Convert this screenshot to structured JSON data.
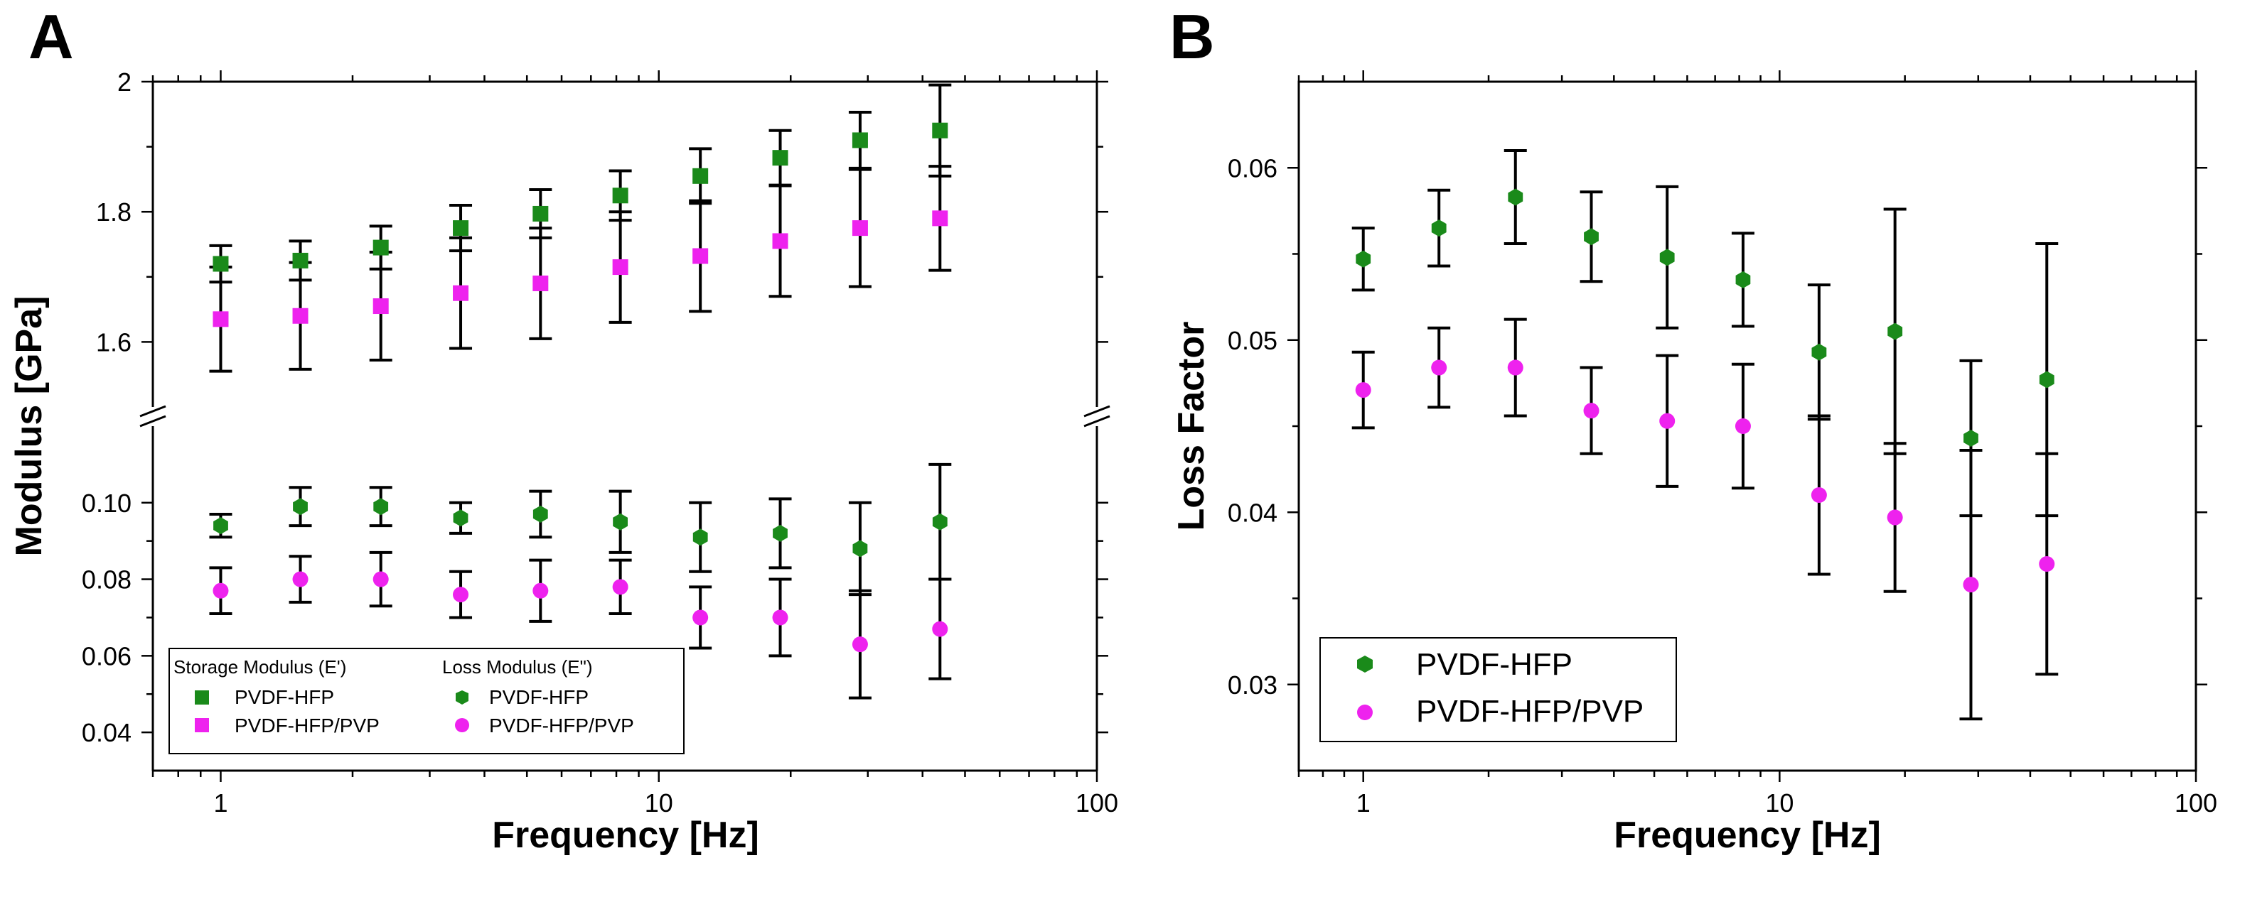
{
  "chart_data": [
    {
      "panel": "A",
      "type": "scatter",
      "xscale": "log",
      "xlabel": "Frequency [Hz]",
      "ylabel": "Modulus [GPa]",
      "xlim": [
        0.7,
        100
      ],
      "x_ticks": [
        1,
        10,
        100
      ],
      "x_tick_labels": [
        "1",
        "10",
        "100"
      ],
      "upper_ylim": [
        1.5,
        2.0
      ],
      "upper_y_ticks": [
        1.6,
        1.8,
        2.0
      ],
      "upper_y_tick_labels": [
        "1.6",
        "1.8",
        "2"
      ],
      "lower_ylim": [
        0.03,
        0.12
      ],
      "lower_y_ticks": [
        0.04,
        0.06,
        0.08,
        0.1
      ],
      "lower_y_tick_labels": [
        "0.04",
        "0.06",
        "0.08",
        "0.10"
      ],
      "x": [
        1.0,
        1.52,
        2.32,
        3.53,
        5.37,
        8.17,
        12.44,
        18.93,
        28.81,
        43.84
      ],
      "series": [
        {
          "name": "PVDF-HFP",
          "group": "Storage Modulus (E')",
          "segment": "upper",
          "marker": "square",
          "color": "#1a8a1a",
          "values": [
            1.72,
            1.725,
            1.745,
            1.775,
            1.797,
            1.825,
            1.855,
            1.883,
            1.91,
            1.925
          ],
          "errors": [
            0.028,
            0.03,
            0.033,
            0.035,
            0.037,
            0.038,
            0.042,
            0.042,
            0.043,
            0.07
          ]
        },
        {
          "name": "PVDF-HFP/PVP",
          "group": "Storage Modulus (E')",
          "segment": "upper",
          "marker": "square",
          "color": "#ee22ee",
          "values": [
            1.635,
            1.64,
            1.655,
            1.675,
            1.69,
            1.715,
            1.732,
            1.755,
            1.775,
            1.79
          ],
          "errors": [
            0.08,
            0.082,
            0.083,
            0.085,
            0.085,
            0.085,
            0.085,
            0.085,
            0.09,
            0.08
          ]
        },
        {
          "name": "PVDF-HFP",
          "group": "Loss Modulus (E\")",
          "segment": "lower",
          "marker": "hexagon",
          "color": "#1a8a1a",
          "values": [
            0.094,
            0.099,
            0.099,
            0.096,
            0.097,
            0.095,
            0.091,
            0.092,
            0.088,
            0.095
          ],
          "errors": [
            0.003,
            0.005,
            0.005,
            0.004,
            0.006,
            0.008,
            0.009,
            0.009,
            0.012,
            0.015
          ]
        },
        {
          "name": "PVDF-HFP/PVP",
          "group": "Loss Modulus (E\")",
          "segment": "lower",
          "marker": "circle",
          "color": "#ee22ee",
          "values": [
            0.077,
            0.08,
            0.08,
            0.076,
            0.077,
            0.078,
            0.07,
            0.07,
            0.063,
            0.067
          ],
          "errors": [
            0.006,
            0.006,
            0.007,
            0.006,
            0.008,
            0.007,
            0.008,
            0.01,
            0.014,
            0.013
          ]
        }
      ],
      "legend": {
        "placement": "bottom-left",
        "columns": [
          {
            "header": "Storage Modulus (E')",
            "entries": [
              "PVDF-HFP",
              "PVDF-HFP/PVP"
            ]
          },
          {
            "header": "Loss Modulus (E\")",
            "entries": [
              "PVDF-HFP",
              "PVDF-HFP/PVP"
            ]
          }
        ]
      }
    },
    {
      "panel": "B",
      "type": "scatter",
      "xscale": "log",
      "xlabel": "Frequency [Hz]",
      "ylabel": "Loss Factor",
      "xlim": [
        0.7,
        100
      ],
      "x_ticks": [
        1,
        10,
        100
      ],
      "x_tick_labels": [
        "1",
        "10",
        "100"
      ],
      "ylim": [
        0.025,
        0.065
      ],
      "y_ticks": [
        0.03,
        0.04,
        0.05,
        0.06
      ],
      "y_tick_labels": [
        "0.03",
        "0.04",
        "0.05",
        "0.06"
      ],
      "x": [
        1.0,
        1.52,
        2.32,
        3.53,
        5.37,
        8.17,
        12.44,
        18.93,
        28.81,
        43.84
      ],
      "series": [
        {
          "name": "PVDF-HFP",
          "marker": "hexagon",
          "color": "#1a8a1a",
          "values": [
            0.0547,
            0.0565,
            0.0583,
            0.056,
            0.0548,
            0.0535,
            0.0493,
            0.0505,
            0.0443,
            0.0477
          ],
          "errors": [
            0.0018,
            0.0022,
            0.0027,
            0.0026,
            0.0041,
            0.0027,
            0.0039,
            0.0071,
            0.0045,
            0.0079
          ]
        },
        {
          "name": "PVDF-HFP/PVP",
          "marker": "circle",
          "color": "#ee22ee",
          "values": [
            0.0471,
            0.0484,
            0.0484,
            0.0459,
            0.0453,
            0.045,
            0.041,
            0.0397,
            0.0358,
            0.037
          ],
          "errors": [
            0.0022,
            0.0023,
            0.0028,
            0.0025,
            0.0038,
            0.0036,
            0.0046,
            0.0043,
            0.0078,
            0.0064
          ]
        }
      ],
      "legend": {
        "placement": "bottom-left",
        "entries": [
          "PVDF-HFP",
          "PVDF-HFP/PVP"
        ]
      }
    }
  ]
}
